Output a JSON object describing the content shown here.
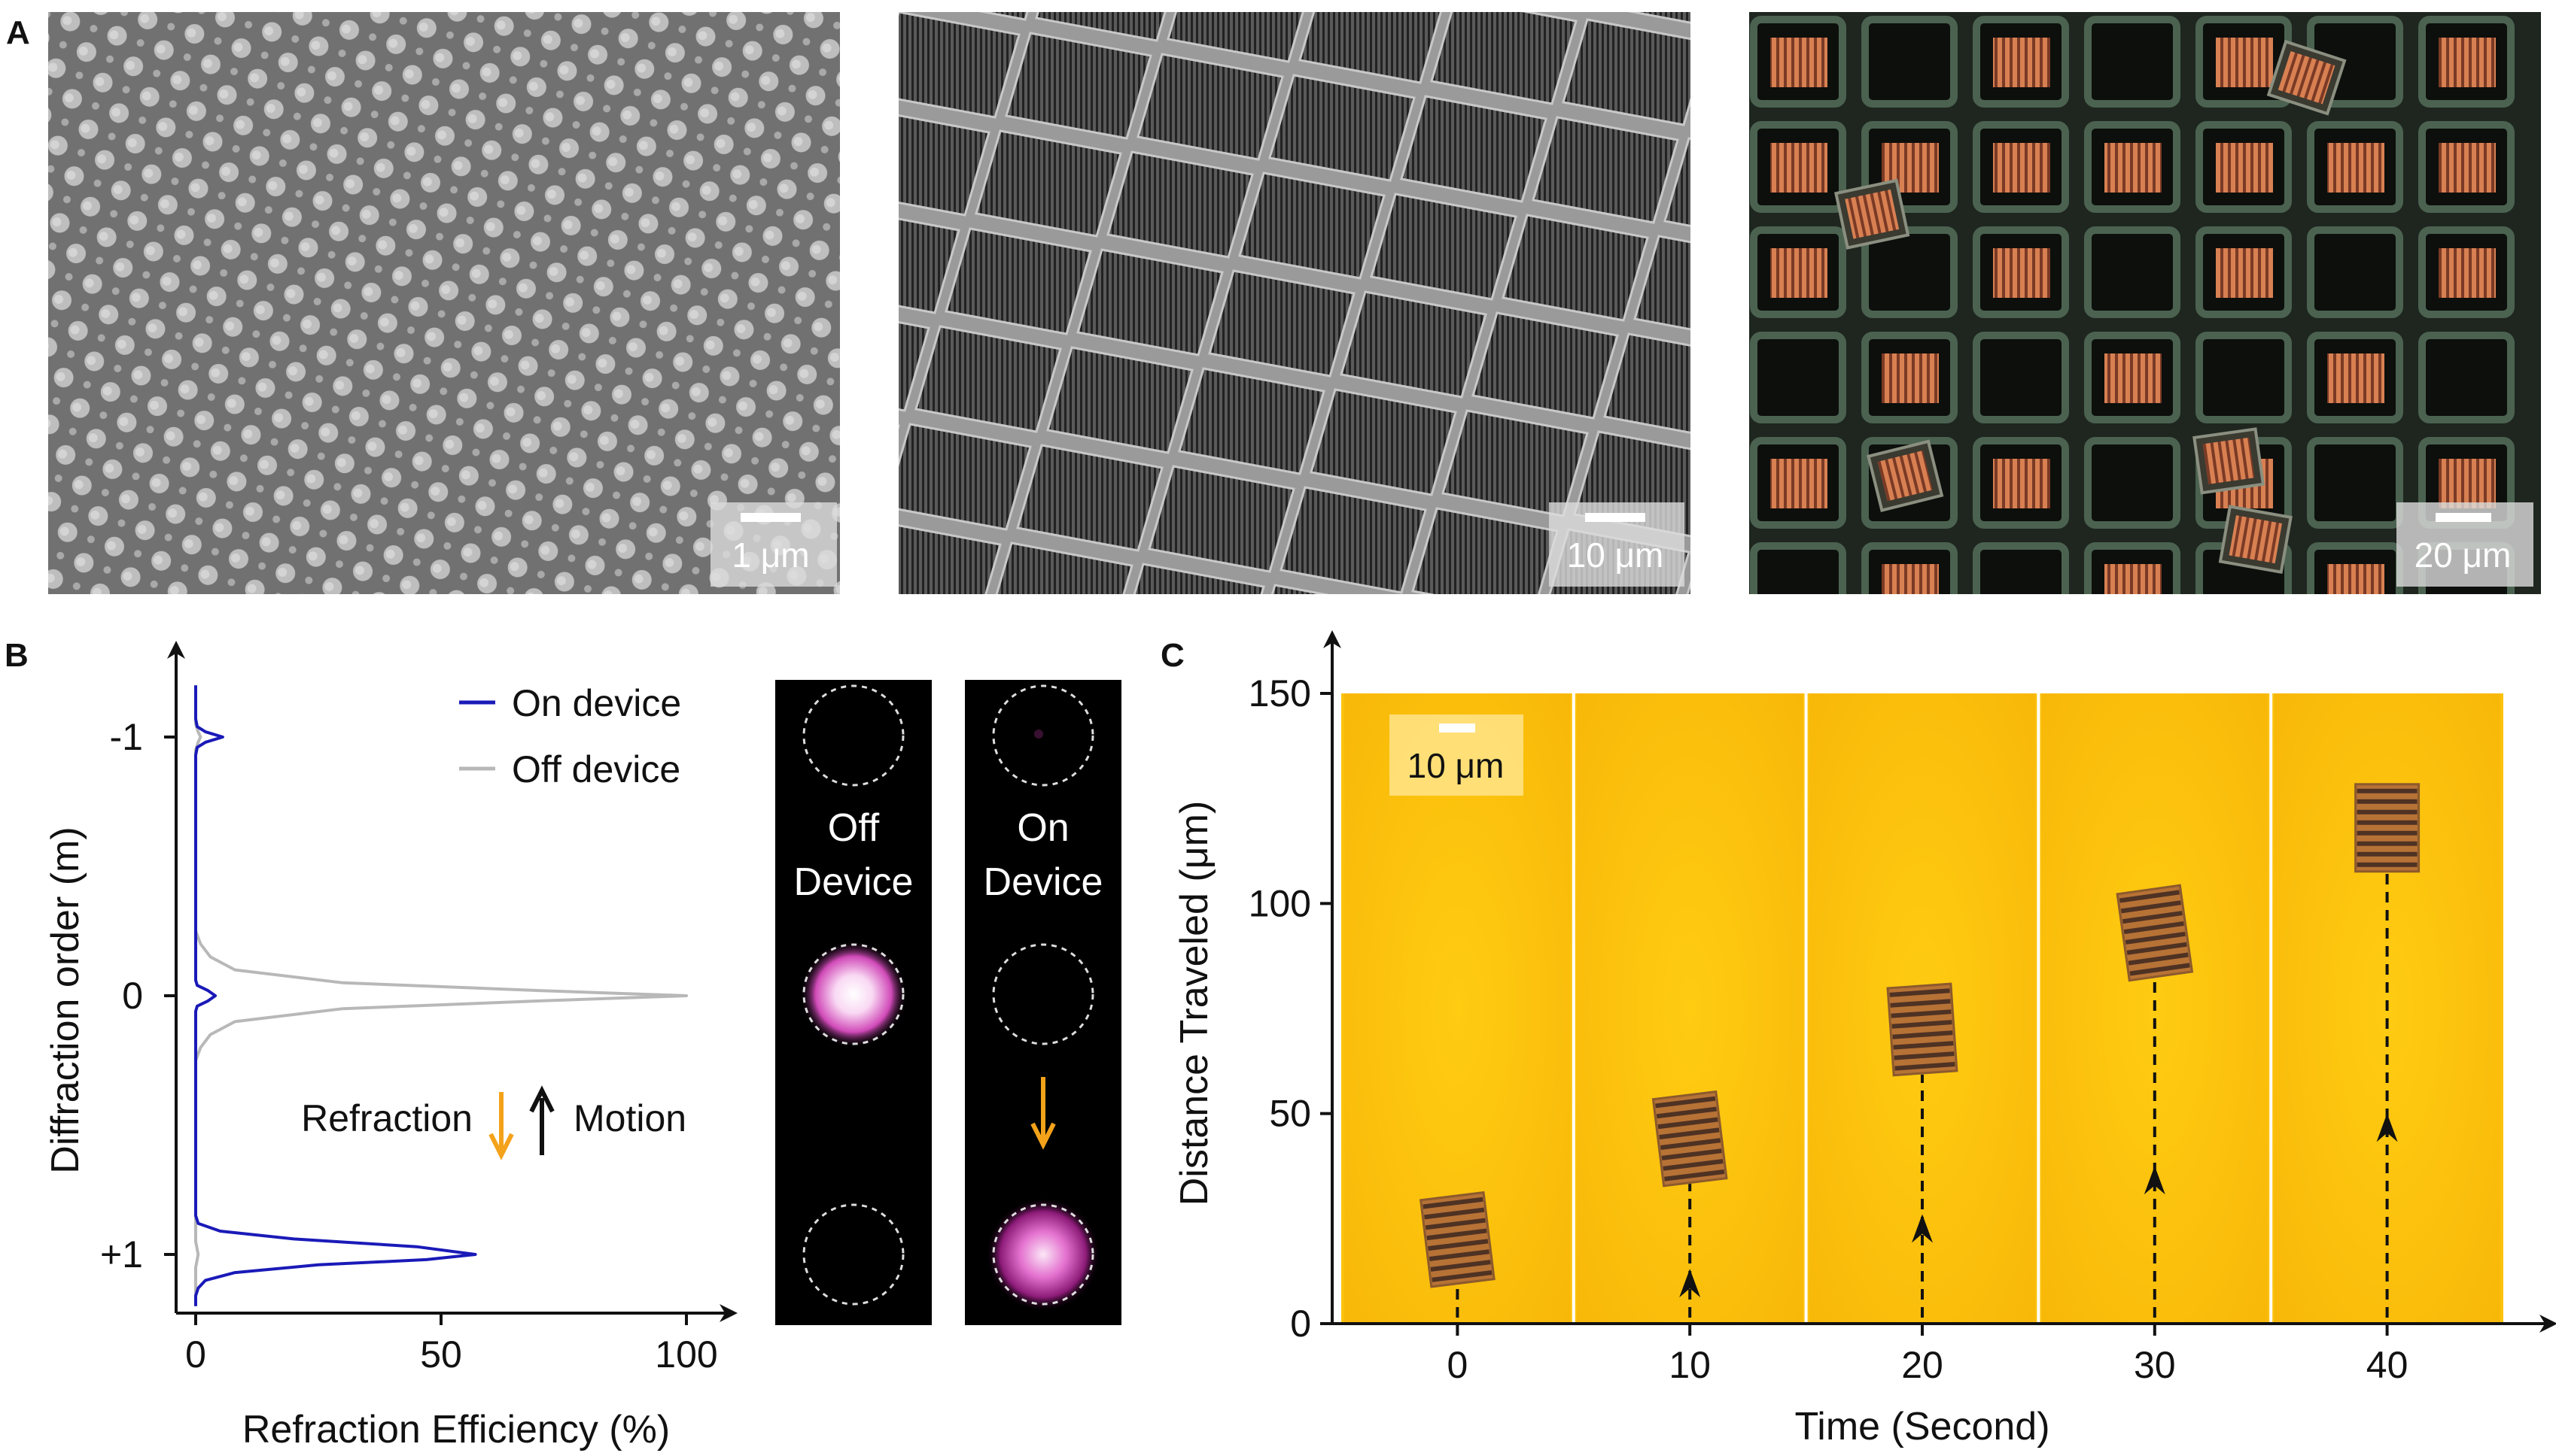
{
  "panel_a": {
    "label": "A",
    "images": [
      {
        "scale_text": "1 μm"
      },
      {
        "scale_text": "10 μm"
      },
      {
        "scale_text": "20 μm"
      }
    ]
  },
  "panel_b": {
    "label": "B",
    "annotations": {
      "refraction": "Refraction",
      "motion": "Motion"
    },
    "spot_images": [
      {
        "line1": "Off",
        "line2": "Device"
      },
      {
        "line1": "On",
        "line2": "Device"
      }
    ]
  },
  "panel_c": {
    "label": "C",
    "scale_text": "10 μm"
  },
  "colors": {
    "on_device": "#1a1ab8",
    "off_device": "#b8b8b8",
    "arrow_orange": "#f4a21a",
    "track_bg": "#fcc30e"
  },
  "chart_data": [
    {
      "type": "line",
      "xlabel": "Refraction Efficiency (%)",
      "ylabel": "Diffraction order (m)",
      "xlim": [
        0,
        100
      ],
      "ylim": [
        -1.2,
        1.2
      ],
      "xticks": [
        "0",
        "50",
        "100"
      ],
      "yticks": [
        {
          "label": "-1",
          "value": -1
        },
        {
          "label": "0",
          "value": 0
        },
        {
          "label": "+1",
          "value": 1
        }
      ],
      "legend_position": "top-right",
      "series": [
        {
          "name": "On device",
          "x": [
            0,
            0,
            0.3,
            2,
            5.5,
            2,
            0.3,
            0,
            0,
            0.3,
            2.5,
            4,
            2.5,
            0.3,
            0,
            0,
            0.5,
            5,
            20,
            45,
            57,
            47,
            25,
            8,
            2,
            0.5,
            0,
            0
          ],
          "y": [
            -1.2,
            -1.07,
            -1.04,
            -1.02,
            -1.0,
            -0.98,
            -0.96,
            -0.93,
            -0.06,
            -0.04,
            -0.02,
            0,
            0.02,
            0.04,
            0.06,
            0.85,
            0.88,
            0.91,
            0.94,
            0.97,
            1.0,
            1.02,
            1.04,
            1.07,
            1.1,
            1.13,
            1.16,
            1.2
          ]
        },
        {
          "name": "Off device",
          "x": [
            0,
            0,
            0.5,
            1,
            0.5,
            0,
            0,
            1,
            3,
            8,
            30,
            70,
            100,
            70,
            30,
            8,
            3,
            1,
            0,
            0,
            0.5,
            0,
            0
          ],
          "y": [
            -1.2,
            -1.05,
            -1.02,
            -1.0,
            -0.98,
            -0.95,
            -0.25,
            -0.2,
            -0.15,
            -0.1,
            -0.05,
            -0.02,
            0,
            0.02,
            0.05,
            0.1,
            0.15,
            0.2,
            0.25,
            0.95,
            1.0,
            1.05,
            1.2
          ]
        }
      ]
    },
    {
      "type": "scatter",
      "xlabel": "Time (Second)",
      "ylabel": "Distance Traveled (μm)",
      "xlim": [
        -5,
        45
      ],
      "ylim": [
        0,
        150
      ],
      "xticks": [
        0,
        10,
        20,
        30,
        40
      ],
      "yticks": [
        0,
        50,
        100,
        150
      ],
      "points": [
        {
          "x": 0,
          "y": 20,
          "angle": -7
        },
        {
          "x": 10,
          "y": 44,
          "angle": -7
        },
        {
          "x": 20,
          "y": 70,
          "angle": -4
        },
        {
          "x": 30,
          "y": 93,
          "angle": -8
        },
        {
          "x": 40,
          "y": 118,
          "angle": 0
        }
      ]
    }
  ]
}
